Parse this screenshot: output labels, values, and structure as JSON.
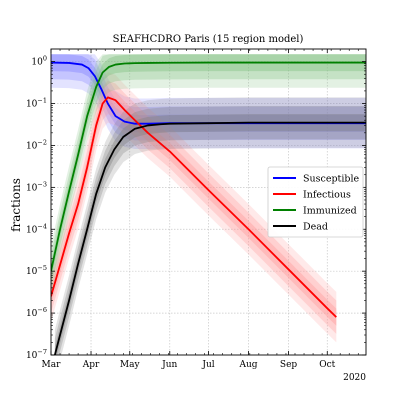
{
  "chart_data": {
    "type": "line",
    "title": "SEAFHCDRO Paris (15 region model)",
    "xlabel": "",
    "ylabel": "fractions",
    "x_tick_labels": [
      "Mar",
      "Apr",
      "May",
      "Jun",
      "Jul",
      "Aug",
      "Sep",
      "Oct"
    ],
    "x_year_label": "2020",
    "xlim": [
      "2020-03-01",
      "2020-10-31"
    ],
    "y_scale": "log",
    "ylim": [
      1e-07,
      2
    ],
    "y_ticks": [
      1e-07,
      1e-06,
      1e-05,
      0.0001,
      0.001,
      0.01,
      0.1,
      1
    ],
    "y_tick_labels": [
      {
        "base": "10",
        "exp": "−7"
      },
      {
        "base": "10",
        "exp": "−6"
      },
      {
        "base": "10",
        "exp": "−5"
      },
      {
        "base": "10",
        "exp": "−4"
      },
      {
        "base": "10",
        "exp": "−3"
      },
      {
        "base": "10",
        "exp": "−2"
      },
      {
        "base": "10",
        "exp": "−1"
      },
      {
        "base": "10",
        "exp": "0"
      }
    ],
    "grid": true,
    "legend_position": "center-right",
    "series": [
      {
        "name": "Susceptible",
        "color": "#0000ff",
        "band_color": "#8080ff",
        "x": [
          "2020-03-01",
          "2020-03-15",
          "2020-03-25",
          "2020-03-30",
          "2020-04-04",
          "2020-04-09",
          "2020-04-14",
          "2020-04-20",
          "2020-04-27",
          "2020-05-05",
          "2020-05-15",
          "2020-06-01",
          "2020-07-01",
          "2020-08-01",
          "2020-09-01",
          "2020-10-01",
          "2020-10-31"
        ],
        "values": [
          0.95,
          0.93,
          0.85,
          0.7,
          0.45,
          0.22,
          0.1,
          0.05,
          0.037,
          0.033,
          0.033,
          0.034,
          0.034,
          0.034,
          0.034,
          0.034,
          0.034
        ]
      },
      {
        "name": "Infectious",
        "color": "#ff0000",
        "band_color": "#ff9999",
        "x": [
          "2020-03-01",
          "2020-03-08",
          "2020-03-15",
          "2020-03-22",
          "2020-03-29",
          "2020-04-05",
          "2020-04-10",
          "2020-04-14",
          "2020-04-20",
          "2020-04-27",
          "2020-05-05",
          "2020-05-15",
          "2020-06-01",
          "2020-07-01",
          "2020-08-01",
          "2020-09-01",
          "2020-10-01",
          "2020-10-08"
        ],
        "values": [
          2.5e-06,
          1.4e-05,
          8e-05,
          0.0004,
          0.003,
          0.03,
          0.1,
          0.14,
          0.12,
          0.07,
          0.04,
          0.02,
          0.0072,
          0.00086,
          0.0001,
          1.1e-05,
          1.3e-06,
          8e-07
        ]
      },
      {
        "name": "Immunized",
        "color": "#008000",
        "band_color": "#80c080",
        "x": [
          "2020-03-01",
          "2020-03-08",
          "2020-03-15",
          "2020-03-22",
          "2020-03-29",
          "2020-04-05",
          "2020-04-10",
          "2020-04-15",
          "2020-04-20",
          "2020-04-27",
          "2020-05-05",
          "2020-05-15",
          "2020-06-01",
          "2020-07-01",
          "2020-08-01",
          "2020-09-01",
          "2020-10-01",
          "2020-10-31"
        ],
        "values": [
          1e-05,
          0.0001,
          0.0008,
          0.006,
          0.05,
          0.25,
          0.55,
          0.75,
          0.85,
          0.9,
          0.92,
          0.93,
          0.94,
          0.95,
          0.95,
          0.95,
          0.95,
          0.95
        ]
      },
      {
        "name": "Dead",
        "color": "#000000",
        "band_color": "#808080",
        "x": [
          "2020-03-04",
          "2020-03-08",
          "2020-03-15",
          "2020-03-22",
          "2020-03-29",
          "2020-04-05",
          "2020-04-12",
          "2020-04-19",
          "2020-04-26",
          "2020-05-05",
          "2020-05-15",
          "2020-05-25",
          "2020-06-01",
          "2020-07-01",
          "2020-08-01",
          "2020-09-01",
          "2020-10-01",
          "2020-10-31"
        ],
        "values": [
          1e-07,
          3e-07,
          2e-06,
          1.5e-05,
          0.0001,
          0.0007,
          0.003,
          0.008,
          0.016,
          0.025,
          0.03,
          0.032,
          0.033,
          0.034,
          0.035,
          0.035,
          0.035,
          0.035
        ]
      }
    ]
  }
}
